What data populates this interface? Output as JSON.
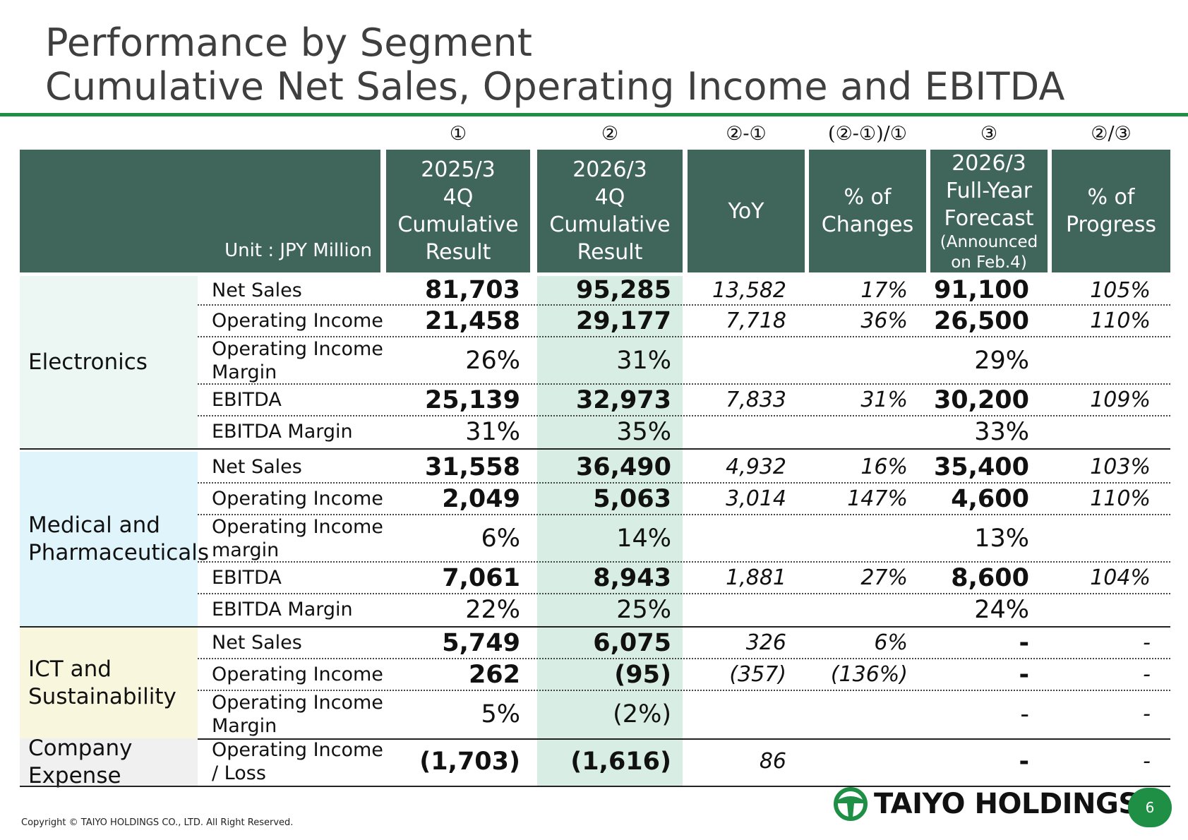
{
  "title_line1": "Performance by Segment",
  "title_line2": "Cumulative Net Sales, Operating Income and EBITDA",
  "markers": [
    "①",
    "②",
    "②-①",
    "(②-①)/①",
    "③",
    "②/③"
  ],
  "header": {
    "unit": "Unit : JPY Million",
    "col1": [
      "2025/3",
      "4Q",
      "Cumulative",
      "Result"
    ],
    "col2": [
      "2026/3",
      "4Q",
      "Cumulative",
      "Result"
    ],
    "col3": [
      "YoY"
    ],
    "col4": [
      "% of",
      "Changes"
    ],
    "col5": [
      "2026/3",
      "Full-Year",
      "Forecast"
    ],
    "col5_small": [
      "(Announced",
      "on Feb.4)"
    ],
    "col6": [
      "% of",
      "Progress"
    ]
  },
  "segments": [
    {
      "name": "Electronics",
      "bg": "#ecf6f2",
      "rows": [
        {
          "label": "Net Sales",
          "r1": "81,703",
          "r2": "95,285",
          "yoy": "13,582",
          "chg": "17%",
          "fc": "91,100",
          "prog": "105%",
          "type": "num"
        },
        {
          "label": "Operating Income",
          "r1": "21,458",
          "r2": "29,177",
          "yoy": "7,718",
          "chg": "36%",
          "fc": "26,500",
          "prog": "110%",
          "type": "num"
        },
        {
          "label": "Operating Income Margin",
          "r1": "26%",
          "r2": "31%",
          "yoy": "",
          "chg": "",
          "fc": "29%",
          "prog": "",
          "type": "pct"
        },
        {
          "label": "EBITDA",
          "r1": "25,139",
          "r2": "32,973",
          "yoy": "7,833",
          "chg": "31%",
          "fc": "30,200",
          "prog": "109%",
          "type": "num"
        },
        {
          "label": "EBITDA Margin",
          "r1": "31%",
          "r2": "35%",
          "yoy": "",
          "chg": "",
          "fc": "33%",
          "prog": "",
          "type": "pct"
        }
      ]
    },
    {
      "name": "Medical and Pharmaceuticals",
      "bg": "#e0f4fb",
      "rows": [
        {
          "label": "Net Sales",
          "r1": "31,558",
          "r2": "36,490",
          "yoy": "4,932",
          "chg": "16%",
          "fc": "35,400",
          "prog": "103%",
          "type": "num"
        },
        {
          "label": "Operating Income",
          "r1": "2,049",
          "r2": "5,063",
          "yoy": "3,014",
          "chg": "147%",
          "fc": "4,600",
          "prog": "110%",
          "type": "num"
        },
        {
          "label": "Operating Income margin",
          "r1": "6%",
          "r2": "14%",
          "yoy": "",
          "chg": "",
          "fc": "13%",
          "prog": "",
          "type": "pct"
        },
        {
          "label": "EBITDA",
          "r1": "7,061",
          "r2": "8,943",
          "yoy": "1,881",
          "chg": "27%",
          "fc": "8,600",
          "prog": "104%",
          "type": "num"
        },
        {
          "label": "EBITDA Margin",
          "r1": "22%",
          "r2": "25%",
          "yoy": "",
          "chg": "",
          "fc": "24%",
          "prog": "",
          "type": "pct"
        }
      ]
    },
    {
      "name": "ICT and Sustainability",
      "bg": "#f8f7dd",
      "rows": [
        {
          "label": "Net Sales",
          "r1": "5,749",
          "r2": "6,075",
          "yoy": "326",
          "chg": "6%",
          "fc": "-",
          "prog": "-",
          "type": "num"
        },
        {
          "label": "Operating Income",
          "r1": "262",
          "r2": "(95)",
          "yoy": "(357)",
          "chg": "(136%)",
          "fc": "-",
          "prog": "-",
          "type": "num"
        },
        {
          "label": "Operating Income Margin",
          "r1": "5%",
          "r2": "(2%)",
          "yoy": "",
          "chg": "",
          "fc": "-",
          "prog": "-",
          "type": "pct"
        }
      ]
    },
    {
      "name": "Company Expense",
      "bg": "#f0f0f0",
      "rows": [
        {
          "label": "Operating Income / Loss",
          "r1": "(1,703)",
          "r2": "(1,616)",
          "yoy": "86",
          "chg": "",
          "fc": "-",
          "prog": "-",
          "type": "num"
        }
      ]
    }
  ],
  "footer": {
    "copyright": "Copyright © TAIYO HOLDINGS CO., LTD.  All Right Reserved.",
    "logo_text": "TAIYO HOLDINGS",
    "page_number": "6"
  },
  "colors": {
    "header_bg": "#40665c",
    "highlight_col": "#d8eee5",
    "brand_green": "#1e8f45"
  }
}
